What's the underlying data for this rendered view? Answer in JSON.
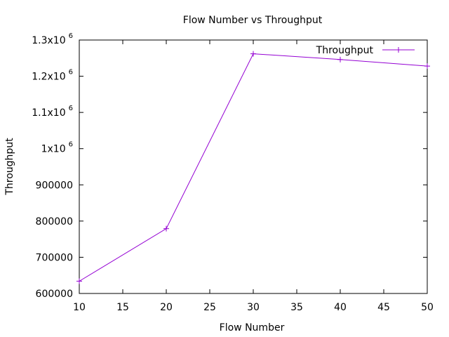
{
  "chart_data": {
    "type": "line",
    "title": "Flow Number vs Throughput",
    "xlabel": "Flow Number",
    "ylabel": "Throughput",
    "xlim": [
      10,
      50
    ],
    "ylim": [
      600000,
      1300000
    ],
    "x_ticks": [
      10,
      15,
      20,
      25,
      30,
      35,
      40,
      45,
      50
    ],
    "y_ticks": [
      {
        "value": 600000,
        "label": "600000",
        "exp": ""
      },
      {
        "value": 700000,
        "label": "700000",
        "exp": ""
      },
      {
        "value": 800000,
        "label": "800000",
        "exp": ""
      },
      {
        "value": 900000,
        "label": "900000",
        "exp": ""
      },
      {
        "value": 1000000,
        "label": "1x10",
        "exp": "6"
      },
      {
        "value": 1100000,
        "label": "1.1x10",
        "exp": "6"
      },
      {
        "value": 1200000,
        "label": "1.2x10",
        "exp": "6"
      },
      {
        "value": 1300000,
        "label": "1.3x10",
        "exp": "6"
      }
    ],
    "grid": false,
    "legend_position": "top-right",
    "series": [
      {
        "name": "Throughput",
        "color": "#9400d3",
        "marker": "plus",
        "x": [
          10,
          20,
          30,
          40,
          50
        ],
        "y": [
          634000,
          779000,
          1262000,
          1246000,
          1228000
        ]
      }
    ]
  }
}
